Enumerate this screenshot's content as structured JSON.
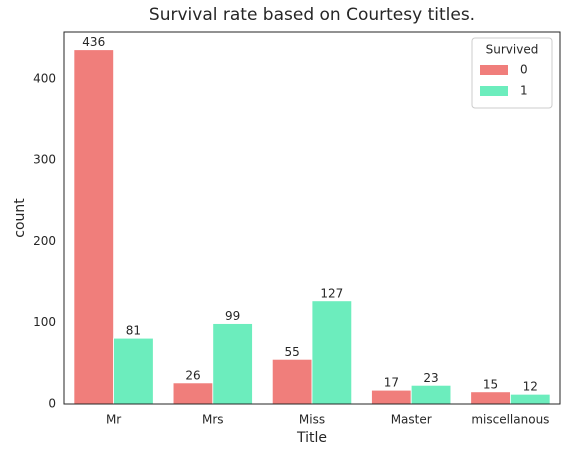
{
  "chart_data": {
    "type": "bar",
    "title": "Survival rate based on Courtesy titles.",
    "x_label": "Title",
    "y_label": "count",
    "categories": [
      "Mr",
      "Mrs",
      "Miss",
      "Master",
      "miscellanous"
    ],
    "legend_title": "Survived",
    "legend_position": "upper right",
    "series": [
      {
        "name": "0",
        "color": "#f07e7b",
        "values": [
          436,
          26,
          55,
          17,
          15
        ]
      },
      {
        "name": "1",
        "color": "#6cedbd",
        "values": [
          81,
          99,
          127,
          23,
          12
        ]
      }
    ],
    "ylim": [
      0,
      457.8
    ],
    "yticks": [
      0,
      100,
      200,
      300,
      400
    ],
    "grid": false
  }
}
